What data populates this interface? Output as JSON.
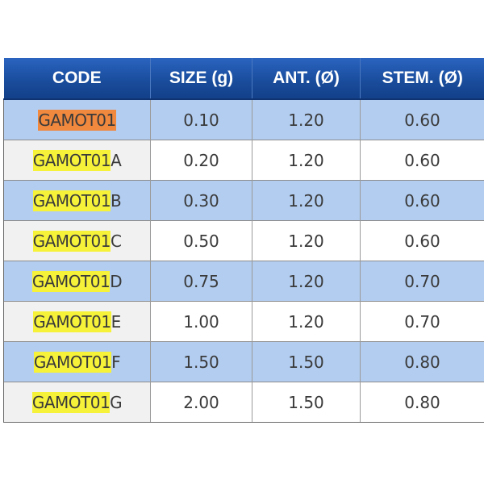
{
  "table": {
    "headers": [
      "CODE",
      "SIZE (g)",
      "ANT. (Ø)",
      "STEM. (Ø)"
    ],
    "rows": [
      {
        "code_base": "GAMOT01",
        "code_suffix": "",
        "size": "0.10",
        "ant": "1.20",
        "stem": "0.60",
        "highlight": "orange"
      },
      {
        "code_base": "GAMOT01",
        "code_suffix": "A",
        "size": "0.20",
        "ant": "1.20",
        "stem": "0.60",
        "highlight": "yellow"
      },
      {
        "code_base": "GAMOT01",
        "code_suffix": "B",
        "size": "0.30",
        "ant": "1.20",
        "stem": "0.60",
        "highlight": "yellow"
      },
      {
        "code_base": "GAMOT01",
        "code_suffix": "C",
        "size": "0.50",
        "ant": "1.20",
        "stem": "0.60",
        "highlight": "yellow"
      },
      {
        "code_base": "GAMOT01",
        "code_suffix": "D",
        "size": "0.75",
        "ant": "1.20",
        "stem": "0.70",
        "highlight": "yellow"
      },
      {
        "code_base": "GAMOT01",
        "code_suffix": "E",
        "size": "1.00",
        "ant": "1.20",
        "stem": "0.70",
        "highlight": "yellow"
      },
      {
        "code_base": "GAMOT01",
        "code_suffix": "F",
        "size": "1.50",
        "ant": "1.50",
        "stem": "0.80",
        "highlight": "yellow"
      },
      {
        "code_base": "GAMOT01",
        "code_suffix": "G",
        "size": "2.00",
        "ant": "1.50",
        "stem": "0.80",
        "highlight": "yellow"
      }
    ]
  },
  "colors": {
    "header_bg": "#1a4d9d",
    "row_blue": "#b2cdf0",
    "row_white": "#ffffff",
    "highlight_orange": "#f0883e",
    "highlight_yellow": "#f6f23a"
  }
}
